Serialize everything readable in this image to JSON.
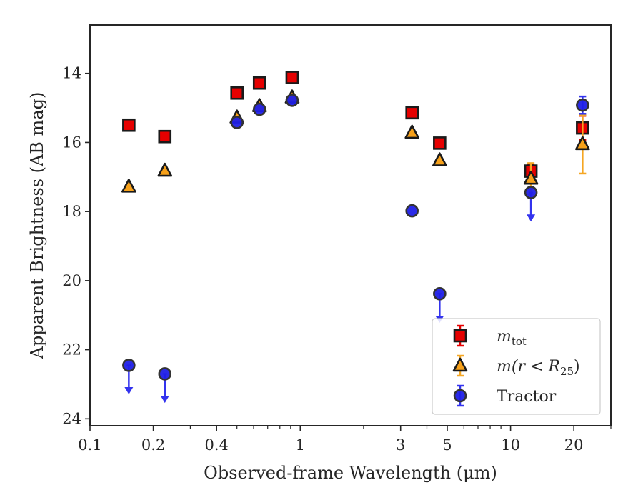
{
  "chart_data": {
    "type": "scatter",
    "xlabel": "Observed-frame Wavelength (μm)",
    "ylabel": "Apparent Brightness (AB mag)",
    "xscale": "log",
    "xlim": [
      0.1,
      30
    ],
    "ylim": [
      24.2,
      12.6
    ],
    "y_inverted": true,
    "x_ticks": [
      {
        "value": 0.1,
        "label": "0.1"
      },
      {
        "value": 0.2,
        "label": "0.2"
      },
      {
        "value": 0.4,
        "label": "0.4"
      },
      {
        "value": 1,
        "label": "1"
      },
      {
        "value": 3,
        "label": "3"
      },
      {
        "value": 5,
        "label": "5"
      },
      {
        "value": 10,
        "label": "10"
      },
      {
        "value": 20,
        "label": "20"
      }
    ],
    "x_minor_ticks": [
      0.3,
      0.5,
      0.6,
      0.7,
      0.8,
      0.9,
      2,
      4,
      6,
      7,
      8,
      9,
      30
    ],
    "y_ticks": [
      {
        "value": 14,
        "label": "14"
      },
      {
        "value": 16,
        "label": "16"
      },
      {
        "value": 18,
        "label": "18"
      },
      {
        "value": 20,
        "label": "20"
      },
      {
        "value": 22,
        "label": "22"
      },
      {
        "value": 24,
        "label": "24"
      }
    ],
    "grid": false,
    "legend_position": "lower-right",
    "series": [
      {
        "name": "m_tot",
        "legend_main": "m",
        "legend_sub": "tot",
        "marker": "square",
        "color": "#e60000",
        "errcolor": "#e60000",
        "points": [
          {
            "x": 0.153,
            "y": 15.5
          },
          {
            "x": 0.227,
            "y": 15.83
          },
          {
            "x": 0.5,
            "y": 14.57
          },
          {
            "x": 0.64,
            "y": 14.28
          },
          {
            "x": 0.915,
            "y": 14.12
          },
          {
            "x": 3.4,
            "y": 15.14
          },
          {
            "x": 4.6,
            "y": 16.02
          },
          {
            "x": 12.5,
            "y": 16.83,
            "err": 0.2
          },
          {
            "x": 22.0,
            "y": 15.58,
            "err": 0.35
          }
        ]
      },
      {
        "name": "m(r < R25)",
        "legend_main": "m(r < R",
        "legend_sub": "25",
        "legend_tail": ")",
        "marker": "triangle",
        "color": "#f7a11a",
        "errcolor": "#f5a623",
        "points": [
          {
            "x": 0.153,
            "y": 17.28
          },
          {
            "x": 0.227,
            "y": 16.82
          },
          {
            "x": 0.5,
            "y": 15.28
          },
          {
            "x": 0.64,
            "y": 14.95
          },
          {
            "x": 0.915,
            "y": 14.7
          },
          {
            "x": 3.4,
            "y": 15.72
          },
          {
            "x": 4.6,
            "y": 16.52
          },
          {
            "x": 12.5,
            "y": 17.05,
            "err": 0.45
          },
          {
            "x": 22.0,
            "y": 16.05,
            "err": 0.85
          }
        ]
      },
      {
        "name": "Tractor",
        "legend_main": "Tractor",
        "marker": "circle",
        "color": "#1f1fe6",
        "errcolor": "#3333ee",
        "points": [
          {
            "x": 0.153,
            "y": 22.45,
            "upper_limit": true
          },
          {
            "x": 0.227,
            "y": 22.7,
            "upper_limit": true
          },
          {
            "x": 0.5,
            "y": 15.42
          },
          {
            "x": 0.64,
            "y": 15.04
          },
          {
            "x": 0.915,
            "y": 14.78
          },
          {
            "x": 3.4,
            "y": 17.98
          },
          {
            "x": 4.6,
            "y": 20.38,
            "upper_limit": true
          },
          {
            "x": 12.5,
            "y": 17.45,
            "upper_limit": true
          },
          {
            "x": 22.0,
            "y": 14.92,
            "err": 0.25
          }
        ]
      }
    ]
  }
}
